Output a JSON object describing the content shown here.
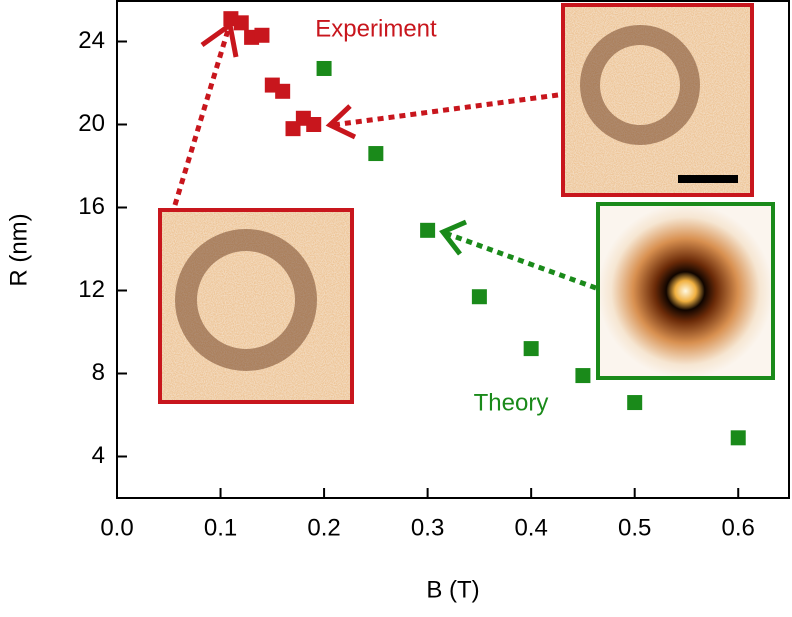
{
  "chart_data": {
    "type": "scatter",
    "xlabel": "B (T)",
    "ylabel": "R (nm)",
    "annotations": [
      "Experiment",
      "Theory"
    ],
    "series": [
      {
        "name": "Experiment",
        "color": "#c8161d",
        "x": [
          0.11,
          0.12,
          0.13,
          0.14,
          0.15,
          0.16,
          0.17,
          0.18,
          0.19
        ],
        "values": [
          25.1,
          24.9,
          24.2,
          24.3,
          21.9,
          21.6,
          19.8,
          20.3,
          20.0
        ]
      },
      {
        "name": "Theory",
        "color": "#1a8a1a",
        "x": [
          0.2,
          0.25,
          0.3,
          0.35,
          0.4,
          0.45,
          0.5,
          0.6
        ],
        "values": [
          22.7,
          18.6,
          14.9,
          11.7,
          9.2,
          7.9,
          6.6,
          4.9
        ]
      }
    ],
    "xlim": [
      0,
      0.65
    ],
    "xticks": [
      {
        "value": 0,
        "label": "0.0"
      },
      0.1,
      0.2,
      0.3,
      0.4,
      0.5,
      0.6
    ],
    "ylim": [
      2,
      26
    ],
    "yticks": [
      4,
      8,
      12,
      16,
      20,
      24
    ]
  }
}
